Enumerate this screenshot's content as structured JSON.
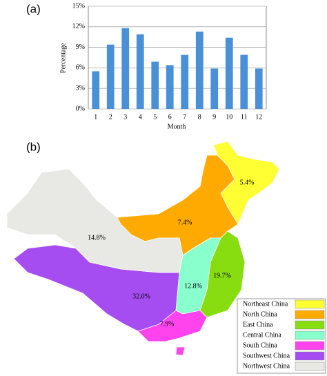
{
  "chart_data": [
    {
      "type": "bar",
      "panel_label": "(a)",
      "xlabel": "Month",
      "ylabel": "Percentage",
      "categories": [
        "1",
        "2",
        "3",
        "4",
        "5",
        "6",
        "7",
        "8",
        "9",
        "10",
        "11",
        "12"
      ],
      "values": [
        5.5,
        9.4,
        11.8,
        10.9,
        6.9,
        6.4,
        7.9,
        11.3,
        5.9,
        10.4,
        7.9,
        5.9
      ],
      "color": "#4a90d9",
      "ylim": [
        0,
        15
      ],
      "yticks": [
        {
          "value": 0,
          "label": "0%"
        },
        {
          "value": 3,
          "label": "3%"
        },
        {
          "value": 6,
          "label": "6%"
        },
        {
          "value": 9,
          "label": "9%"
        },
        {
          "value": 12,
          "label": "12%"
        },
        {
          "value": 15,
          "label": "15%"
        }
      ],
      "grid": true
    },
    {
      "type": "map",
      "panel_label": "(b)",
      "categories": [
        "Northeast China",
        "North China",
        "East China",
        "Central China",
        "South China",
        "Southwest China",
        "Northwest China"
      ],
      "values": [
        5.4,
        7.4,
        19.7,
        12.8,
        7.9,
        32.0,
        14.8
      ],
      "value_labels": [
        "5.4%",
        "7.4%",
        "19.7%",
        "12.8%",
        "7.9%",
        "32.0%",
        "14.8%"
      ],
      "colors": [
        "#ffff33",
        "#ffaa00",
        "#88dd11",
        "#88ffcc",
        "#ff44ee",
        "#a64df2",
        "#e8e8e4"
      ]
    }
  ]
}
